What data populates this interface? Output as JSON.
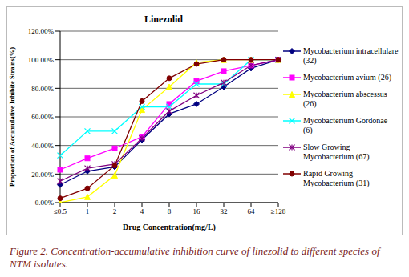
{
  "chart_data": {
    "type": "line",
    "title": "Linezolid",
    "x_label": "Drug Concentration(mg/L)",
    "y_label": "Proportion of Accumulative Inhibite Strains(%)",
    "caption": "Figure 2. Concentration-accumulative inhibition curve of linezolid to different species of NTM isolates.",
    "categories": [
      "≤0.5",
      "1",
      "2",
      "4",
      "8",
      "16",
      "32",
      "64",
      "≥128"
    ],
    "ylim": [
      0,
      120
    ],
    "yticks": [
      {
        "value": 0,
        "label": "0.00%"
      },
      {
        "value": 20,
        "label": "20.00%"
      },
      {
        "value": 40,
        "label": "40.00%"
      },
      {
        "value": 60,
        "label": "60.00%"
      },
      {
        "value": 80,
        "label": "80.00%"
      },
      {
        "value": 100,
        "label": "100.00%"
      },
      {
        "value": 120,
        "label": "120.00%"
      }
    ],
    "grid": true,
    "legend": "right",
    "series": [
      {
        "name": "Mycobacterium intracellulare (32)",
        "color": "#000080",
        "marker": "diamond",
        "values": [
          12.5,
          22,
          25,
          44,
          62,
          69,
          81,
          94,
          100
        ]
      },
      {
        "name": "Mycobacterium avium (26)",
        "color": "#FF00FF",
        "marker": "square",
        "values": [
          23,
          31,
          38,
          46,
          69,
          85,
          92,
          96,
          100
        ]
      },
      {
        "name": "Mycobacterium abscessus (26)",
        "color": "#FFFF00",
        "marker": "triangle",
        "values": [
          0,
          4,
          19,
          65,
          81,
          98,
          100,
          100,
          100
        ]
      },
      {
        "name": "Mycobacterium Gordonae (6)",
        "color": "#00FFFF",
        "marker": "x",
        "values": [
          33,
          50,
          50,
          67,
          67,
          83,
          83,
          100,
          100
        ]
      },
      {
        "name": "Slow Growing Mycobacterium (67)",
        "color": "#800080",
        "marker": "star",
        "values": [
          15,
          24,
          27,
          45,
          64,
          75,
          84,
          96,
          100
        ]
      },
      {
        "name": "Rapid Growing Mycobacterium (31)",
        "color": "#800000",
        "marker": "circle",
        "values": [
          3,
          10,
          26,
          71,
          87,
          97,
          100,
          100,
          100
        ]
      }
    ]
  }
}
